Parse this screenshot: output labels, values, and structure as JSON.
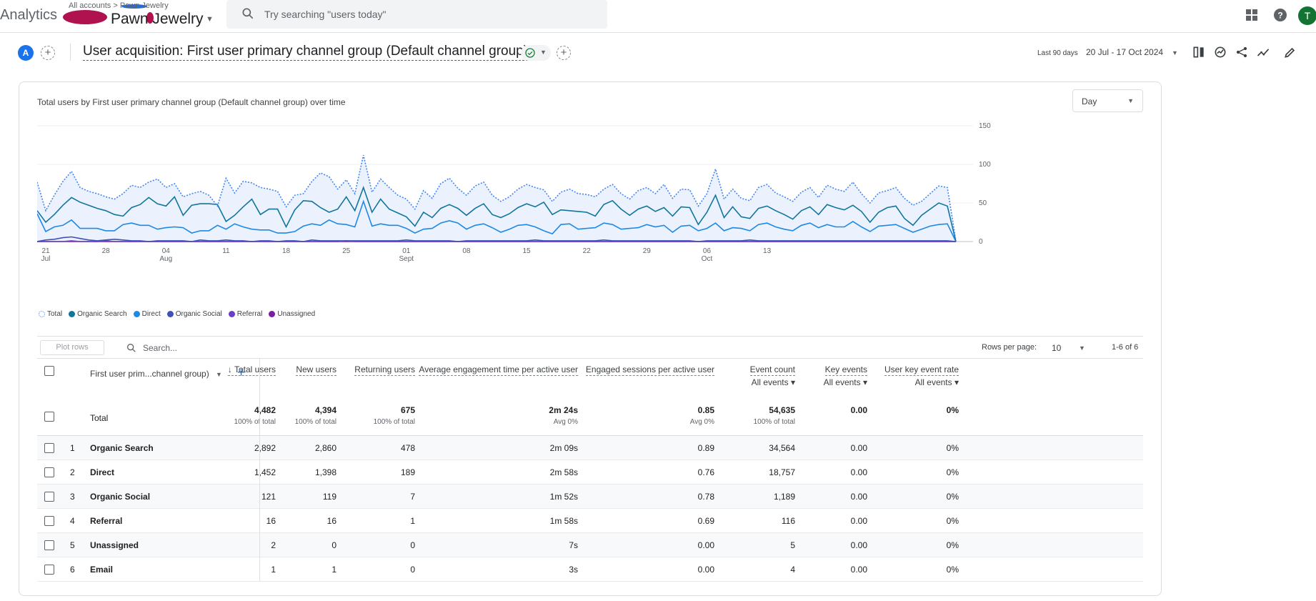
{
  "topbar": {
    "brand": "Analytics",
    "account_path": "All accounts  >  Pawn Jewelry",
    "property_name": "Pawn  Jewelry",
    "search_placeholder": "Try searching \"users today\"",
    "avatar_letter": "T"
  },
  "header": {
    "badge": "A",
    "title": "User acquisition: First user primary channel group (Default channel group)",
    "date_preset": "Last 90 days",
    "date_range": "20 Jul - 17 Oct 2024"
  },
  "chart": {
    "title": "Total users by First user primary channel group (Default channel group) over time",
    "granularity": "Day",
    "legend": [
      {
        "label": "Total",
        "color": "#4285f4"
      },
      {
        "label": "Organic Search",
        "color": "#12759b"
      },
      {
        "label": "Direct",
        "color": "#1e88e5"
      },
      {
        "label": "Organic Social",
        "color": "#3f51b5"
      },
      {
        "label": "Referral",
        "color": "#6a3fc6"
      },
      {
        "label": "Unassigned",
        "color": "#7b1fa2"
      }
    ]
  },
  "chart_data": {
    "type": "line",
    "title": "Total users by First user primary channel group (Default channel group) over time",
    "x_ticks": [
      {
        "day": "21",
        "month": "Jul"
      },
      {
        "day": "28",
        "month": ""
      },
      {
        "day": "04",
        "month": "Aug"
      },
      {
        "day": "11",
        "month": ""
      },
      {
        "day": "18",
        "month": ""
      },
      {
        "day": "25",
        "month": ""
      },
      {
        "day": "01",
        "month": "Sept"
      },
      {
        "day": "08",
        "month": ""
      },
      {
        "day": "15",
        "month": ""
      },
      {
        "day": "22",
        "month": ""
      },
      {
        "day": "29",
        "month": ""
      },
      {
        "day": "06",
        "month": "Oct"
      },
      {
        "day": "13",
        "month": ""
      }
    ],
    "y_ticks": [
      "150",
      "100",
      "50",
      "0"
    ],
    "ylim": [
      0,
      150
    ],
    "series": [
      {
        "name": "Total",
        "color": "#4285f4",
        "style": "dotted",
        "values": [
          77,
          40,
          60,
          78,
          91,
          70,
          65,
          62,
          58,
          55,
          62,
          73,
          70,
          77,
          81,
          70,
          75,
          58,
          62,
          65,
          60,
          46,
          82,
          63,
          78,
          76,
          70,
          68,
          65,
          45,
          60,
          62,
          78,
          89,
          84,
          68,
          80,
          62,
          112,
          64,
          81,
          70,
          60,
          55,
          42,
          66,
          56,
          75,
          82,
          69,
          60,
          72,
          77,
          60,
          52,
          58,
          68,
          74,
          70,
          67,
          52,
          64,
          68,
          62,
          61,
          58,
          68,
          74,
          62,
          55,
          66,
          70,
          62,
          74,
          56,
          68,
          67,
          46,
          62,
          94,
          55,
          68,
          56,
          53,
          70,
          74,
          63,
          58,
          52,
          64,
          70,
          57,
          73,
          68,
          65,
          77,
          62,
          50,
          63,
          66,
          70,
          56,
          47,
          52,
          62,
          72,
          70,
          1
        ]
      },
      {
        "name": "Organic Search",
        "color": "#12759b",
        "style": "solid",
        "values": [
          40,
          25,
          35,
          47,
          57,
          51,
          47,
          43,
          40,
          35,
          33,
          44,
          48,
          57,
          49,
          46,
          58,
          34,
          47,
          49,
          49,
          48,
          26,
          34,
          45,
          55,
          35,
          42,
          42,
          19,
          41,
          53,
          52,
          44,
          38,
          42,
          58,
          40,
          70,
          38,
          55,
          42,
          37,
          32,
          20,
          38,
          31,
          43,
          48,
          43,
          34,
          43,
          49,
          35,
          31,
          36,
          44,
          49,
          45,
          51,
          35,
          41,
          40,
          39,
          38,
          33,
          48,
          53,
          42,
          34,
          42,
          46,
          39,
          44,
          33,
          45,
          44,
          22,
          38,
          60,
          31,
          45,
          32,
          30,
          43,
          46,
          40,
          35,
          29,
          40,
          45,
          35,
          48,
          44,
          41,
          47,
          39,
          25,
          38,
          44,
          46,
          30,
          21,
          34,
          42,
          50,
          46,
          0
        ]
      },
      {
        "name": "Direct",
        "color": "#1e88e5",
        "style": "solid",
        "values": [
          36,
          13,
          19,
          21,
          28,
          17,
          17,
          17,
          14,
          14,
          22,
          24,
          21,
          21,
          16,
          18,
          19,
          18,
          11,
          14,
          14,
          21,
          16,
          23,
          19,
          16,
          15,
          15,
          11,
          11,
          13,
          20,
          23,
          21,
          28,
          23,
          22,
          19,
          52,
          20,
          23,
          21,
          21,
          17,
          11,
          16,
          17,
          24,
          27,
          24,
          16,
          21,
          23,
          18,
          12,
          16,
          21,
          22,
          19,
          14,
          10,
          22,
          23,
          16,
          17,
          18,
          24,
          22,
          16,
          17,
          18,
          22,
          19,
          21,
          12,
          20,
          21,
          14,
          17,
          24,
          14,
          18,
          17,
          14,
          22,
          24,
          19,
          16,
          14,
          21,
          24,
          18,
          22,
          19,
          19,
          26,
          19,
          13,
          20,
          21,
          22,
          17,
          12,
          16,
          20,
          22,
          23,
          0
        ]
      },
      {
        "name": "Organic Social",
        "color": "#3f51b5",
        "style": "solid",
        "values": [
          0,
          2,
          3,
          5,
          6,
          4,
          2,
          1,
          2,
          3,
          2,
          1,
          1,
          0,
          1,
          1,
          1,
          1,
          0,
          2,
          1,
          1,
          2,
          1,
          1,
          0,
          1,
          1,
          0,
          1,
          1,
          0,
          2,
          1,
          1,
          1,
          1,
          1,
          1,
          1,
          1,
          1,
          1,
          2,
          1,
          1,
          1,
          1,
          1,
          0,
          1,
          1,
          1,
          1,
          1,
          1,
          1,
          1,
          2,
          1,
          1,
          1,
          1,
          1,
          1,
          1,
          2,
          1,
          1,
          1,
          1,
          1,
          1,
          1,
          1,
          1,
          1,
          0,
          1,
          1,
          1,
          1,
          1,
          2,
          1,
          1,
          1,
          1,
          1,
          1,
          1,
          1,
          1,
          1,
          1,
          1,
          1,
          1,
          1,
          1,
          1,
          1,
          1,
          1,
          1,
          1,
          1,
          0
        ]
      },
      {
        "name": "Referral",
        "color": "#6a3fc6",
        "style": "solid",
        "values": [
          0,
          0,
          0,
          0,
          1,
          0,
          0,
          0,
          1,
          0,
          0,
          0,
          0,
          0,
          0,
          0,
          0,
          0,
          0,
          0,
          0,
          0,
          0,
          0,
          0,
          0,
          0,
          0,
          0,
          0,
          0,
          0,
          0,
          0,
          0,
          0,
          1,
          0,
          0,
          0,
          0,
          0,
          0,
          0,
          0,
          0,
          0,
          0,
          0,
          0,
          0,
          0,
          0,
          0,
          0,
          0,
          0,
          0,
          0,
          0,
          0,
          0,
          0,
          0,
          0,
          0,
          0,
          0,
          0,
          0,
          0,
          0,
          0,
          0,
          0,
          0,
          0,
          0,
          0,
          0,
          0,
          0,
          0,
          0,
          0,
          0,
          0,
          0,
          0,
          0,
          0,
          0,
          0,
          0,
          0,
          0,
          0,
          0,
          0,
          0,
          0,
          0,
          0,
          0,
          0,
          0,
          0,
          0
        ]
      },
      {
        "name": "Unassigned",
        "color": "#7b1fa2",
        "style": "solid",
        "values": [
          0,
          0,
          0,
          0,
          0,
          0,
          0,
          0,
          0,
          0,
          0,
          0,
          0,
          0,
          0,
          0,
          0,
          0,
          0,
          0,
          0,
          0,
          0,
          0,
          0,
          0,
          0,
          0,
          0,
          0,
          0,
          0,
          0,
          0,
          0,
          0,
          0,
          0,
          0,
          0,
          0,
          0,
          0,
          0,
          0,
          0,
          0,
          0,
          0,
          0,
          0,
          0,
          0,
          0,
          0,
          0,
          0,
          0,
          0,
          0,
          0,
          0,
          0,
          0,
          0,
          0,
          0,
          0,
          0,
          0,
          0,
          0,
          0,
          0,
          0,
          0,
          0,
          0,
          0,
          0,
          0,
          0,
          0,
          0,
          0,
          0,
          0,
          0,
          0,
          0,
          0,
          0,
          0,
          0,
          0,
          0,
          0,
          0,
          0,
          0,
          0,
          0,
          0,
          0,
          0,
          0,
          0,
          0
        ]
      }
    ]
  },
  "table_toolbar": {
    "plot_rows": "Plot rows",
    "search_placeholder": "Search...",
    "rows_per_page_label": "Rows per page:",
    "rows_per_page": "10",
    "pagination": "1-6 of 6"
  },
  "table": {
    "dimension_header": "First user prim...channel group)",
    "columns": [
      {
        "label": "Total users",
        "sub": ""
      },
      {
        "label": "New users",
        "sub": ""
      },
      {
        "label": "Returning users",
        "sub": ""
      },
      {
        "label": "Average engagement time per active user",
        "sub": ""
      },
      {
        "label": "Engaged sessions per active user",
        "sub": ""
      },
      {
        "label": "Event count",
        "sub": "All events"
      },
      {
        "label": "Key events",
        "sub": "All events"
      },
      {
        "label": "User key event rate",
        "sub": "All events"
      }
    ],
    "total_label": "Total",
    "totals": [
      "4,482",
      "4,394",
      "675",
      "2m 24s",
      "0.85",
      "54,635",
      "0.00",
      "0%"
    ],
    "totals_sub": [
      "100% of total",
      "100% of total",
      "100% of total",
      "Avg 0%",
      "Avg 0%",
      "100% of total",
      "",
      ""
    ],
    "rows": [
      {
        "rank": "1",
        "channel": "Organic Search",
        "values": [
          "2,892",
          "2,860",
          "478",
          "2m 09s",
          "0.89",
          "34,564",
          "0.00",
          "0%"
        ]
      },
      {
        "rank": "2",
        "channel": "Direct",
        "values": [
          "1,452",
          "1,398",
          "189",
          "2m 58s",
          "0.76",
          "18,757",
          "0.00",
          "0%"
        ]
      },
      {
        "rank": "3",
        "channel": "Organic Social",
        "values": [
          "121",
          "119",
          "7",
          "1m 52s",
          "0.78",
          "1,189",
          "0.00",
          "0%"
        ]
      },
      {
        "rank": "4",
        "channel": "Referral",
        "values": [
          "16",
          "16",
          "1",
          "1m 58s",
          "0.69",
          "116",
          "0.00",
          "0%"
        ]
      },
      {
        "rank": "5",
        "channel": "Unassigned",
        "values": [
          "2",
          "0",
          "0",
          "7s",
          "0.00",
          "5",
          "0.00",
          "0%"
        ]
      },
      {
        "rank": "6",
        "channel": "Email",
        "values": [
          "1",
          "1",
          "0",
          "3s",
          "0.00",
          "4",
          "0.00",
          "0%"
        ]
      }
    ]
  }
}
